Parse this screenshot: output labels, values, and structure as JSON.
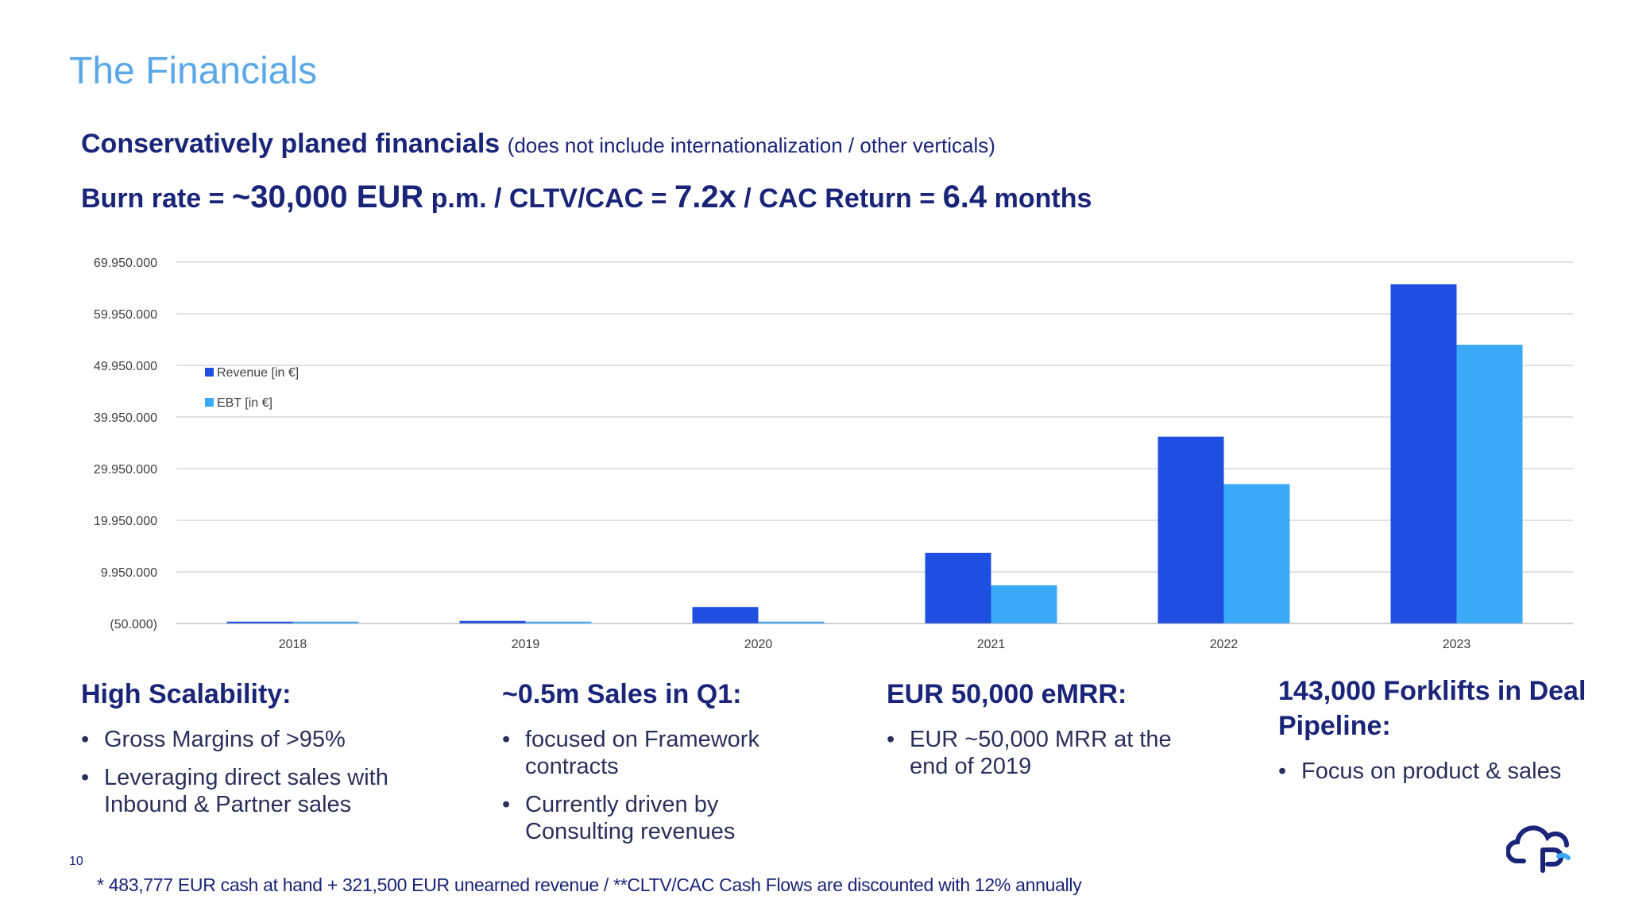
{
  "page": {
    "title": "The Financials",
    "page_number": "10",
    "footnote": "* 483,777 EUR cash at hand + 321,500 EUR unearned revenue / **CLTV/CAC Cash Flows are discounted with 12% annually"
  },
  "headline1": {
    "main": "Conservatively planed financials",
    "sub": "(does not include internationalization / other verticals)"
  },
  "headline2": {
    "part1": "Burn rate = ",
    "burn": "~30,000 EUR",
    "part2": " p.m. / CLTV/CAC = ",
    "cltv": "7.2x",
    "part3": " / CAC Return = ",
    "cac_return": "6.4",
    "part4": " months"
  },
  "colors": {
    "revenue": "#1f4fe0",
    "ebt": "#3aaaf8",
    "grid": "#d9d9d9",
    "axis_text": "#404040"
  },
  "chart_data": {
    "type": "bar",
    "categories": [
      "2018",
      "2019",
      "2020",
      "2021",
      "2022",
      "2023"
    ],
    "series": [
      {
        "name": "Revenue [in €]",
        "values": [
          250000,
          450000,
          3150000,
          13650000,
          36150000,
          65650000
        ]
      },
      {
        "name": "EBT [in €]",
        "values": [
          -50000,
          150000,
          150000,
          7350000,
          26950000,
          53950000
        ]
      }
    ],
    "y_ticks": [
      -50000,
      9950000,
      19950000,
      29950000,
      39950000,
      49950000,
      59950000,
      69950000
    ],
    "y_tick_labels": [
      "(50.000)",
      "9.950.000",
      "19.950.000",
      "29.950.000",
      "39.950.000",
      "49.950.000",
      "59.950.000",
      "69.950.000"
    ],
    "ylim": [
      -50000,
      69950000
    ],
    "legend": "upper-left inside plot",
    "grid": true
  },
  "columns": [
    {
      "heading": "High Scalability:",
      "bullets": [
        "Gross Margins of >95%",
        "Leveraging direct sales with Inbound & Partner sales"
      ]
    },
    {
      "heading": "~0.5m Sales in Q1:",
      "bullets": [
        "focused on Framework contracts",
        "Currently driven by Consulting revenues"
      ]
    },
    {
      "heading": "EUR 50,000 eMRR:",
      "bullets": [
        "EUR ~50,000 MRR at the end of 2019"
      ]
    },
    {
      "heading": "143,000 Forklifts in Deal Pipeline:",
      "bullets": [
        "Focus on product & sales"
      ]
    }
  ],
  "logo": {
    "icon": "cloud-logo-icon"
  }
}
